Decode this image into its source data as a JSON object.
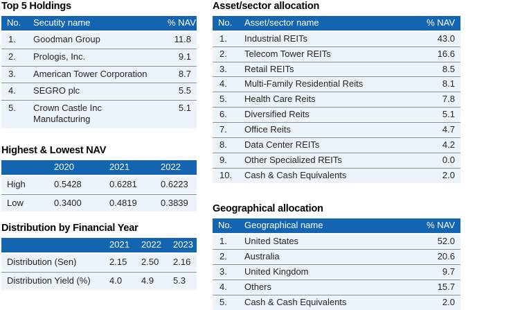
{
  "colors": {
    "header_bg": "#1465B1",
    "header_text": "#FFFFFF",
    "row_bg": "#EDF3FA",
    "separator": "#7C8FA6",
    "body_text": "#262626",
    "title_text": "#000000"
  },
  "tables": {
    "top_holdings": {
      "title": "Top 5 Holdings",
      "columns": [
        "No.",
        "Secutity name",
        "% NAV"
      ],
      "rows": [
        [
          "1.",
          "Goodman Group",
          "11.8"
        ],
        [
          "2.",
          "Prologis, Inc.",
          "9.1"
        ],
        [
          "3.",
          "American Tower Corporation",
          "8.7"
        ],
        [
          "4.",
          "SEGRO plc",
          "5.5"
        ],
        [
          "5.",
          "Crown Castle Inc\nManufacturing",
          "5.1"
        ]
      ]
    },
    "nav": {
      "title": "Highest & Lowest NAV",
      "columns": [
        "",
        "2020",
        "2021",
        "2022"
      ],
      "rows": [
        [
          "High",
          "0.5428",
          "0.6281",
          "0.6223"
        ],
        [
          "Low",
          "0.3400",
          "0.4819",
          "0.3839"
        ]
      ]
    },
    "distribution": {
      "title": "Distribution by Financial Year",
      "columns": [
        "",
        "2021",
        "2022",
        "2023"
      ],
      "rows": [
        [
          "Distribution (Sen)",
          "2.15",
          "2.50",
          "2.16"
        ],
        [
          "Distribution Yield (%)",
          "4.0",
          "4.9",
          "5.3"
        ]
      ]
    },
    "asset_sector": {
      "title": "Asset/sector allocation",
      "columns": [
        "No.",
        "Asset/sector name",
        "% NAV"
      ],
      "rows": [
        [
          "1.",
          "Industrial REITs",
          "43.0"
        ],
        [
          "2.",
          "Telecom Tower REITs",
          "16.6"
        ],
        [
          "3.",
          "Retail REITs",
          "8.5"
        ],
        [
          "4.",
          "Multi-Family Residential Reits",
          "8.1"
        ],
        [
          "5.",
          "Health Care Reits",
          "7.8"
        ],
        [
          "6.",
          "Diversified Reits",
          "5.1"
        ],
        [
          "7.",
          "Office Reits",
          "4.7"
        ],
        [
          "8.",
          "Data Center REITs",
          "4.2"
        ],
        [
          "9.",
          "Other Specialized REITs",
          "0.0"
        ],
        [
          "10.",
          "Cash & Cash Equivalents",
          "2.0"
        ]
      ]
    },
    "geographical": {
      "title": "Geographical allocation",
      "columns": [
        "No.",
        "Geographical name",
        "% NAV"
      ],
      "rows": [
        [
          "1.",
          "United States",
          "52.0"
        ],
        [
          "2.",
          "Australia",
          "20.6"
        ],
        [
          "3.",
          "United Kingdom",
          "9.7"
        ],
        [
          "4.",
          "Others",
          "15.7"
        ],
        [
          "5.",
          "Cash & Cash Equivalents",
          "2.0"
        ]
      ]
    }
  }
}
